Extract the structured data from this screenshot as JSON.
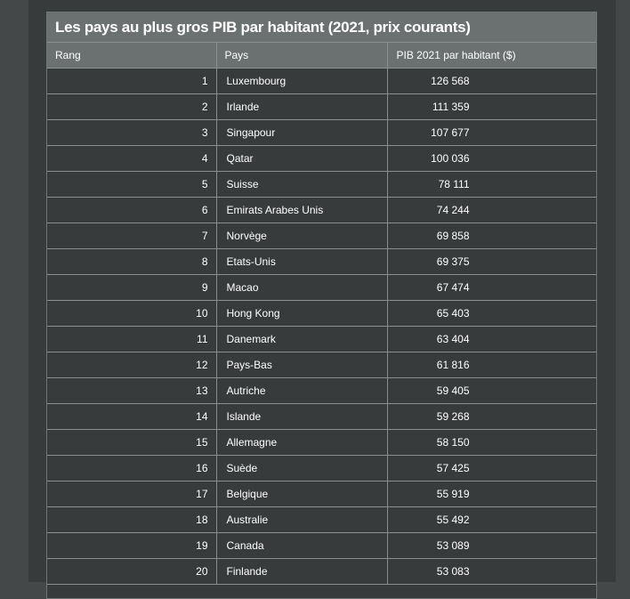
{
  "table": {
    "title": "Les pays au plus gros PIB par habitant (2021, prix courants)",
    "headers": [
      "Rang",
      "Pays",
      "PIB 2021 par habitant ($)"
    ],
    "rows": [
      {
        "rank": "1",
        "country": "Luxembourg",
        "gdp": "126 568"
      },
      {
        "rank": "2",
        "country": "Irlande",
        "gdp": "111 359"
      },
      {
        "rank": "3",
        "country": "Singapour",
        "gdp": "107 677"
      },
      {
        "rank": "4",
        "country": "Qatar",
        "gdp": "100 036"
      },
      {
        "rank": "5",
        "country": "Suisse",
        "gdp": "78 111"
      },
      {
        "rank": "6",
        "country": "Emirats Arabes Unis",
        "gdp": "74 244"
      },
      {
        "rank": "7",
        "country": "Norvège",
        "gdp": "69 858"
      },
      {
        "rank": "8",
        "country": "Etats-Unis",
        "gdp": "69 375"
      },
      {
        "rank": "9",
        "country": "Macao",
        "gdp": "67 474"
      },
      {
        "rank": "10",
        "country": "Hong Kong",
        "gdp": "65 403"
      },
      {
        "rank": "11",
        "country": "Danemark",
        "gdp": "63 404"
      },
      {
        "rank": "12",
        "country": "Pays-Bas",
        "gdp": "61 816"
      },
      {
        "rank": "13",
        "country": "Autriche",
        "gdp": "59 405"
      },
      {
        "rank": "14",
        "country": "Islande",
        "gdp": "59 268"
      },
      {
        "rank": "15",
        "country": "Allemagne",
        "gdp": "58 150"
      },
      {
        "rank": "16",
        "country": "Suède",
        "gdp": "57 425"
      },
      {
        "rank": "17",
        "country": "Belgique",
        "gdp": "55 919"
      },
      {
        "rank": "18",
        "country": "Australie",
        "gdp": "55 492"
      },
      {
        "rank": "19",
        "country": "Canada",
        "gdp": "53 089"
      },
      {
        "rank": "20",
        "country": "Finlande",
        "gdp": "53 083"
      }
    ]
  },
  "colors": {
    "page_background": "#454848",
    "panel_background": "#383b3c",
    "header_background": "#6b7070",
    "border": "#8a8f8f",
    "text": "#ffffff"
  }
}
